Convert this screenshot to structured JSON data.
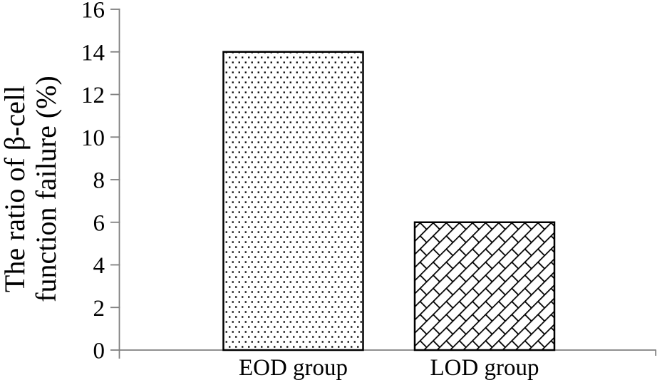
{
  "chart_data": {
    "type": "bar",
    "categories": [
      "EOD group",
      "LOD group"
    ],
    "values": [
      14,
      6
    ],
    "title": "",
    "xlabel": "",
    "ylabel": "The ratio of β-cell function failure (%)",
    "ylabel_lines": [
      "The ratio of β-cell",
      "function failure (%)"
    ],
    "ylim": [
      0,
      16
    ],
    "yticks": [
      0,
      2,
      4,
      6,
      8,
      10,
      12,
      14,
      16
    ],
    "grid": false,
    "legend": false,
    "bar_patterns": [
      "dots",
      "diagonal-brick"
    ],
    "colors": {
      "background": "#ffffff",
      "axis": "#808080",
      "bar_outline": "#000000",
      "pattern_ink": "#000000",
      "text": "#000000"
    }
  }
}
